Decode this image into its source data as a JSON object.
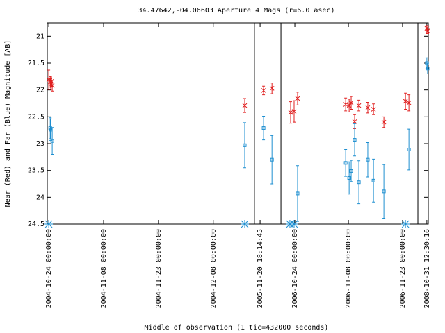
{
  "chart_data": {
    "type": "scatter",
    "title": "34.47642,-04.06603   Aperture 4 Mags (r=6.0 asec)",
    "xlabel": "Middle of observation (1 tic=432000 seconds)",
    "ylabel": "Near (Red) and Far (Blue) Magnitude [AB]",
    "xlim": [
      -0.08,
      20.76
    ],
    "ylim": [
      24.5,
      20.75
    ],
    "yticks": [
      21,
      21.5,
      22,
      22.5,
      23,
      23.5,
      24,
      24.5
    ],
    "xticks": [
      {
        "value": 0,
        "label": "2004-10-24 00:00:00"
      },
      {
        "value": 3,
        "label": "2004-11-08 00:00:00"
      },
      {
        "value": 6,
        "label": "2004-11-23 00:00:00"
      },
      {
        "value": 9,
        "label": "2004-12-08 00:00:00"
      },
      {
        "value": 11.56,
        "label": "2005-11-20 18:14:45"
      },
      {
        "value": 13.46,
        "label": "2006-10-24 00:00:00"
      },
      {
        "value": 16.39,
        "label": "2006-11-08 00:00:00"
      },
      {
        "value": 19.35,
        "label": "2006-11-23 00:00:00"
      },
      {
        "value": 20.68,
        "label": "2008-10-31 12:30:16"
      }
    ],
    "breaks": [
      11.25,
      12.7,
      20.19
    ],
    "series": [
      {
        "color": "#e02020",
        "marker": "star",
        "x": [
          0,
          0.08,
          0.11,
          0.15,
          0.19,
          10.72,
          11.75,
          12.21,
          13.23,
          13.42,
          13.61,
          16.24,
          16.43,
          16.54,
          16.73,
          16.96,
          17.45,
          17.76,
          18.33,
          19.51,
          19.7,
          20.68,
          20.72
        ],
        "values": [
          21.81,
          21.85,
          21.89,
          21.84,
          21.92,
          22.29,
          22.01,
          21.97,
          22.42,
          22.4,
          22.16,
          22.27,
          22.29,
          22.24,
          22.59,
          22.29,
          22.33,
          22.36,
          22.6,
          22.21,
          22.24,
          20.85,
          20.9
        ],
        "errors": [
          0.18,
          0.1,
          0.1,
          0.1,
          0.1,
          0.13,
          0.08,
          0.1,
          0.2,
          0.2,
          0.12,
          0.12,
          0.12,
          0.12,
          0.13,
          0.1,
          0.1,
          0.1,
          0.1,
          0.15,
          0.15,
          0.05,
          0.05
        ]
      },
      {
        "color": "#1e8fd0",
        "marker": "square",
        "x": [
          0.08,
          0.11,
          0.19,
          10.72,
          11.75,
          12.21,
          13.61,
          16.24,
          16.43,
          16.54,
          16.73,
          16.96,
          17.45,
          17.76,
          18.33,
          19.7,
          20.68,
          20.72
        ],
        "values": [
          22.71,
          22.74,
          22.95,
          23.03,
          22.71,
          23.3,
          23.93,
          23.36,
          23.64,
          23.51,
          22.93,
          23.72,
          23.3,
          23.69,
          23.89,
          23.11,
          21.5,
          21.6
        ],
        "errors": [
          0.2,
          0.2,
          0.25,
          0.42,
          0.22,
          0.45,
          0.52,
          0.25,
          0.3,
          0.2,
          0.3,
          0.4,
          0.32,
          0.4,
          0.5,
          0.38,
          0.1,
          0.1
        ]
      },
      {
        "color": "#1e8fd0",
        "marker": "asterisk",
        "x": [
          0,
          10.72,
          13.19,
          13.42,
          19.51
        ],
        "values": [
          24.5,
          24.5,
          24.5,
          24.5,
          24.5
        ]
      }
    ]
  }
}
